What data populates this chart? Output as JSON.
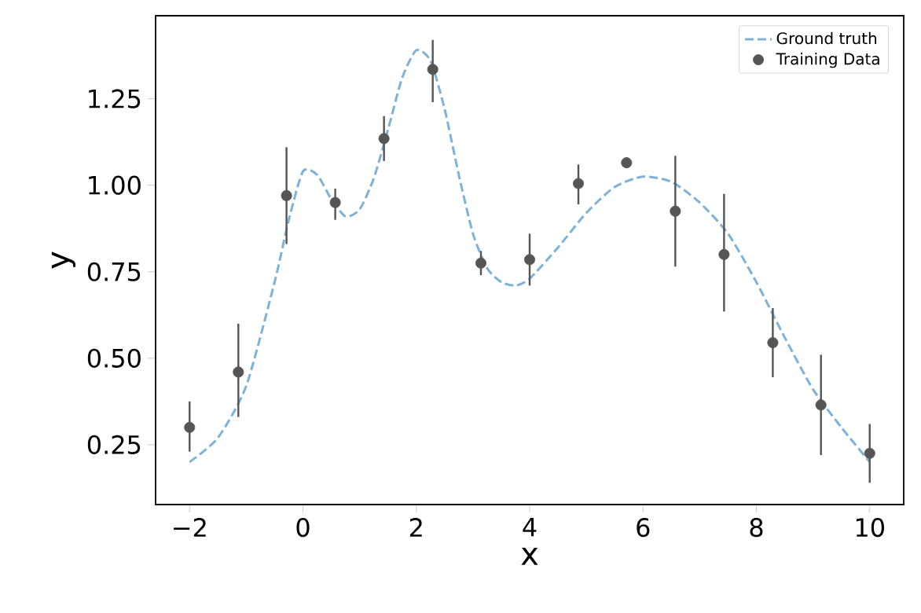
{
  "chart_data": {
    "type": "line",
    "xlabel": "x",
    "ylabel": "y",
    "xlim": [
      -2.6,
      10.6
    ],
    "ylim": [
      0.077,
      1.49
    ],
    "xticks": [
      {
        "value": -2,
        "label": "−2"
      },
      0,
      2,
      4,
      6,
      8,
      10
    ],
    "yticks": [
      0.25,
      {
        "value": 0.5,
        "label": "0.50"
      },
      0.75,
      {
        "value": 1.0,
        "label": "1.00"
      },
      1.25
    ],
    "legend": "top right",
    "series": [
      {
        "name": "Ground truth",
        "color": "#7fb2d9",
        "line_style": "dashed",
        "marker": "none",
        "x": [
          -2,
          -1.5,
          -1,
          -0.5,
          -0.25,
          0,
          0.25,
          0.5,
          0.75,
          1,
          1.25,
          1.5,
          1.75,
          2,
          2.25,
          2.5,
          2.75,
          3,
          3.25,
          3.5,
          3.75,
          4,
          4.5,
          5,
          5.5,
          6,
          6.5,
          7,
          7.5,
          8,
          8.5,
          9,
          9.5,
          10
        ],
        "values": [
          0.2,
          0.27,
          0.42,
          0.72,
          0.9,
          1.04,
          1.03,
          0.96,
          0.91,
          0.93,
          1.02,
          1.16,
          1.31,
          1.39,
          1.36,
          1.22,
          1.03,
          0.86,
          0.76,
          0.72,
          0.71,
          0.73,
          0.82,
          0.92,
          0.995,
          1.025,
          1.01,
          0.95,
          0.86,
          0.72,
          0.56,
          0.41,
          0.3,
          0.2
        ]
      },
      {
        "name": "Training Data",
        "type": "scatter",
        "color": "#555555",
        "marker": "circle",
        "x": [
          -2,
          -1.14,
          -0.29,
          0.57,
          1.43,
          2.29,
          3.14,
          4,
          4.86,
          5.71,
          6.57,
          7.43,
          8.29,
          9.14,
          10
        ],
        "values": [
          0.3,
          0.46,
          0.97,
          0.95,
          1.135,
          1.335,
          0.775,
          0.785,
          1.005,
          1.065,
          0.925,
          0.8,
          0.545,
          0.365,
          0.225
        ],
        "errors": [
          [
            0.23,
            0.375
          ],
          [
            0.33,
            0.6
          ],
          [
            0.83,
            1.11
          ],
          [
            0.9,
            0.99
          ],
          [
            1.07,
            1.2
          ],
          [
            1.24,
            1.42
          ],
          [
            0.74,
            0.81
          ],
          [
            0.71,
            0.86
          ],
          [
            0.945,
            1.06
          ],
          [
            1.05,
            1.08
          ],
          [
            0.765,
            1.085
          ],
          [
            0.635,
            0.975
          ],
          [
            0.445,
            0.645
          ],
          [
            0.22,
            0.51
          ],
          [
            0.14,
            0.31
          ]
        ]
      }
    ]
  }
}
